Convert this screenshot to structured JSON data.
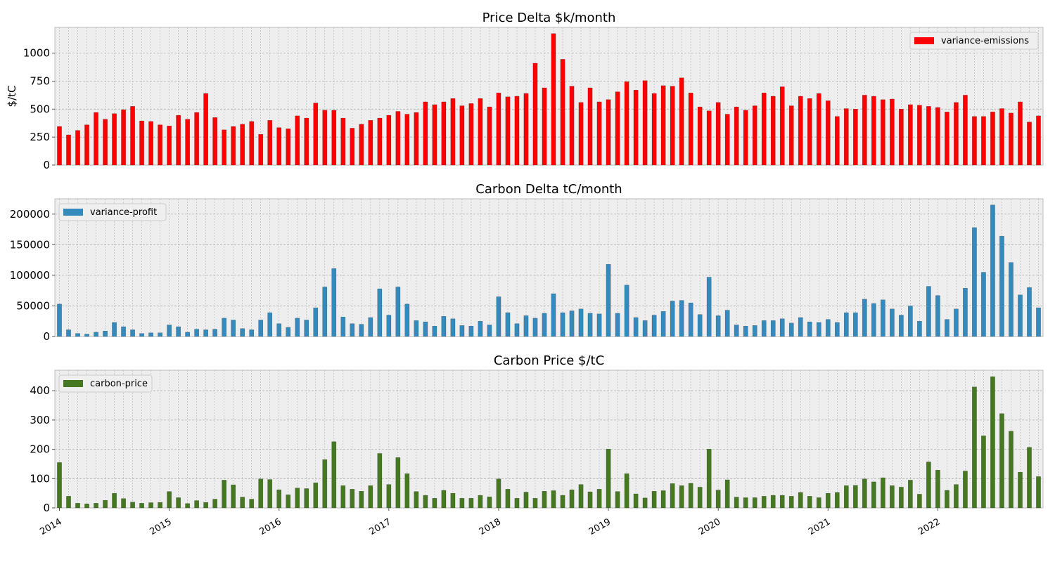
{
  "chart_data": [
    {
      "type": "bar",
      "title": "Price Delta $k/month",
      "xlabel": "",
      "ylabel": "$/tC",
      "ylim": [
        0,
        1230
      ],
      "yticks": [
        0,
        250,
        500,
        750,
        1000
      ],
      "legend_position": "top-right",
      "grid": true,
      "series": [
        {
          "name": "variance-emissions",
          "color": "#ff0000",
          "values": [
            345,
            270,
            310,
            360,
            470,
            410,
            460,
            495,
            525,
            395,
            390,
            360,
            350,
            445,
            410,
            470,
            640,
            425,
            315,
            345,
            365,
            390,
            275,
            400,
            335,
            325,
            440,
            420,
            555,
            490,
            490,
            420,
            330,
            365,
            400,
            420,
            445,
            480,
            455,
            470,
            565,
            540,
            565,
            595,
            530,
            550,
            595,
            520,
            645,
            610,
            615,
            640,
            910,
            690,
            1175,
            945,
            705,
            560,
            690,
            565,
            585,
            655,
            745,
            670,
            755,
            640,
            710,
            705,
            780,
            645,
            520,
            485,
            560,
            455,
            520,
            490,
            530,
            645,
            615,
            700,
            530,
            615,
            595,
            640,
            575,
            435,
            505,
            500,
            625,
            615,
            585,
            590,
            500,
            540,
            535,
            525,
            515,
            475,
            560,
            625,
            435,
            435,
            475,
            505,
            465,
            565,
            385,
            440
          ]
        }
      ]
    },
    {
      "type": "bar",
      "title": "Carbon Delta tC/month",
      "xlabel": "",
      "ylabel": "",
      "ylim": [
        0,
        225000
      ],
      "yticks": [
        0,
        50000,
        100000,
        150000,
        200000
      ],
      "legend_position": "top-left",
      "grid": true,
      "series": [
        {
          "name": "variance-profit",
          "color": "#348abd",
          "values": [
            53000,
            11000,
            5000,
            4000,
            7000,
            9000,
            23000,
            16000,
            11000,
            5000,
            6000,
            6000,
            19000,
            16000,
            7000,
            12000,
            11000,
            12000,
            30000,
            27000,
            13000,
            11000,
            27000,
            39000,
            21000,
            15000,
            30000,
            27000,
            47000,
            81000,
            111000,
            32000,
            21000,
            20000,
            31000,
            78000,
            35000,
            81000,
            53000,
            26000,
            24000,
            17000,
            33000,
            29000,
            18000,
            17000,
            25000,
            19000,
            65000,
            39000,
            21000,
            34000,
            30000,
            38000,
            70000,
            39000,
            42000,
            45000,
            38000,
            37000,
            118000,
            38000,
            84000,
            31000,
            26000,
            35000,
            41000,
            58000,
            59000,
            55000,
            36000,
            97000,
            34000,
            43000,
            19000,
            17000,
            18000,
            26000,
            26000,
            29000,
            22000,
            31000,
            24000,
            23000,
            28000,
            23000,
            39000,
            39000,
            61000,
            54000,
            60000,
            45000,
            35000,
            50000,
            25000,
            82000,
            67000,
            28000,
            45000,
            79000,
            178000,
            105000,
            215000,
            164000,
            121000,
            68000,
            80000,
            47000
          ]
        }
      ]
    },
    {
      "type": "bar",
      "title": "Carbon Price $/tC",
      "xlabel": "",
      "ylabel": "",
      "ylim": [
        0,
        470
      ],
      "yticks": [
        0,
        100,
        200,
        300,
        400
      ],
      "legend_position": "top-left",
      "grid": true,
      "series": [
        {
          "name": "carbon-price",
          "color": "#467821",
          "values": [
            155,
            40,
            16,
            14,
            16,
            26,
            50,
            32,
            20,
            16,
            18,
            19,
            56,
            35,
            15,
            25,
            19,
            30,
            95,
            79,
            37,
            30,
            99,
            97,
            62,
            45,
            68,
            66,
            86,
            165,
            226,
            76,
            64,
            57,
            76,
            186,
            80,
            172,
            117,
            56,
            43,
            33,
            60,
            50,
            33,
            33,
            43,
            38,
            99,
            64,
            33,
            54,
            33,
            57,
            59,
            43,
            62,
            80,
            55,
            64,
            201,
            56,
            117,
            48,
            34,
            57,
            59,
            83,
            76,
            84,
            71,
            201,
            61,
            96,
            37,
            35,
            35,
            40,
            43,
            43,
            40,
            53,
            40,
            35,
            50,
            53,
            76,
            77,
            99,
            89,
            103,
            76,
            71,
            95,
            47,
            157,
            129,
            60,
            80,
            126,
            413,
            246,
            448,
            322,
            262,
            122,
            207,
            107
          ]
        }
      ],
      "x_tick_labels": [
        "2014",
        "2015",
        "2016",
        "2017",
        "2018",
        "2019",
        "2020",
        "2021",
        "2022"
      ]
    }
  ]
}
